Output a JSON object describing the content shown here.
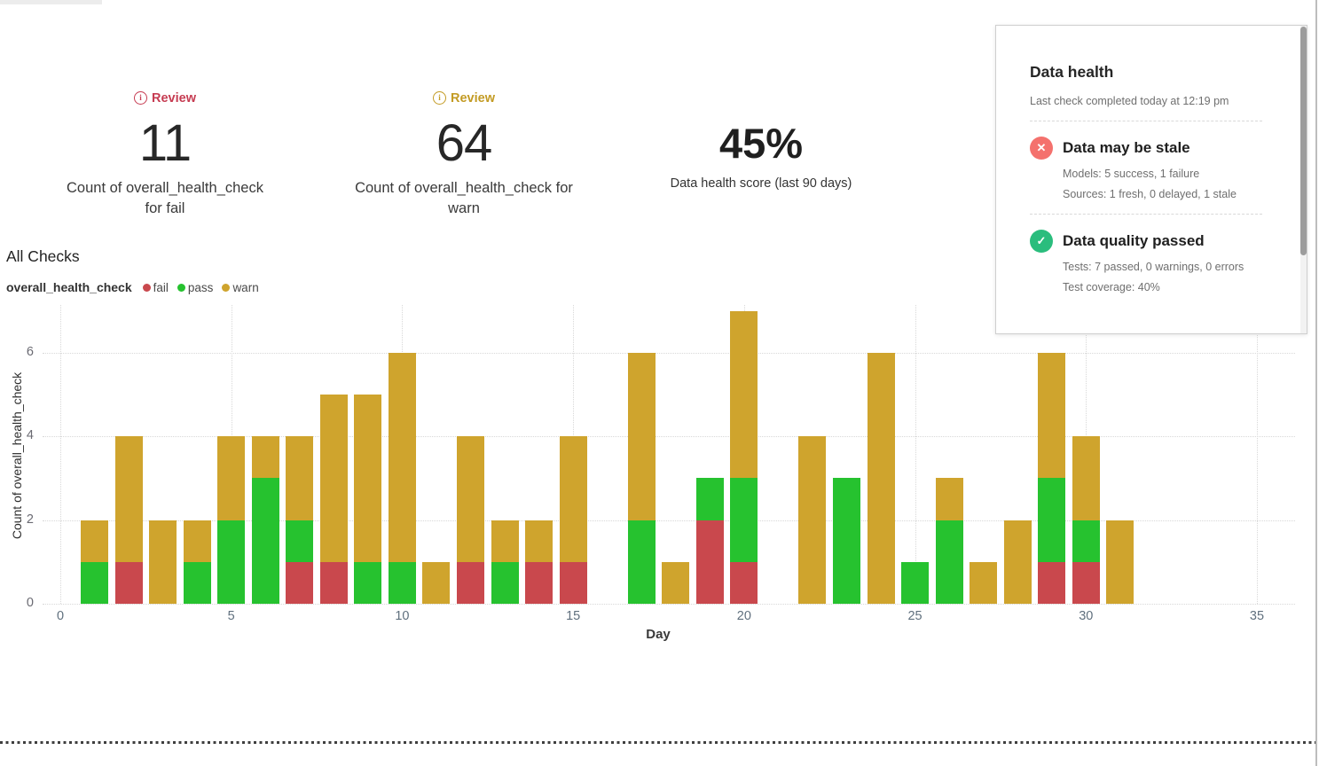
{
  "kpis": [
    {
      "badge": "Review",
      "badge_color": "#c63c52",
      "value": "11",
      "caption_lines": [
        "Count of overall_health_check",
        "for fail"
      ]
    },
    {
      "badge": "Review",
      "badge_color": "#c39b24",
      "value": "64",
      "caption_lines": [
        "Count of overall_health_check for",
        "warn"
      ]
    },
    {
      "value": "45%",
      "caption_lines": [
        "Data health score (last 90 days)"
      ]
    }
  ],
  "section": {
    "title": "All Checks"
  },
  "legend": {
    "group_label": "overall_health_check",
    "items": [
      {
        "label": "fail",
        "color": "#c9484d"
      },
      {
        "label": "pass",
        "color": "#26c22f"
      },
      {
        "label": "warn",
        "color": "#cfa42d"
      }
    ]
  },
  "chart_data": {
    "type": "bar",
    "stacked": true,
    "title": "All Checks",
    "xlabel": "Day",
    "ylabel": "Count of overall_health_check",
    "x": [
      1,
      2,
      3,
      4,
      5,
      6,
      7,
      8,
      9,
      10,
      11,
      12,
      13,
      14,
      15,
      16,
      17,
      18,
      19,
      20,
      21,
      22,
      23,
      24,
      25,
      26,
      27,
      28,
      29,
      30,
      31
    ],
    "series": [
      {
        "name": "fail",
        "color": "#c9484d",
        "values": [
          0,
          1,
          0,
          0,
          0,
          0,
          1,
          1,
          0,
          0,
          0,
          1,
          0,
          1,
          1,
          0,
          0,
          0,
          2,
          1,
          0,
          0,
          0,
          0,
          0,
          0,
          0,
          0,
          1,
          1,
          0
        ]
      },
      {
        "name": "pass",
        "color": "#26c22f",
        "values": [
          1,
          0,
          0,
          1,
          2,
          3,
          1,
          0,
          1,
          1,
          0,
          0,
          1,
          0,
          0,
          0,
          2,
          0,
          1,
          2,
          0,
          0,
          3,
          0,
          1,
          2,
          0,
          0,
          2,
          1,
          0
        ]
      },
      {
        "name": "warn",
        "color": "#cfa42d",
        "values": [
          1,
          3,
          2,
          1,
          2,
          1,
          2,
          4,
          4,
          5,
          1,
          3,
          1,
          1,
          3,
          0,
          4,
          1,
          0,
          4,
          0,
          4,
          0,
          6,
          0,
          1,
          1,
          2,
          3,
          2,
          2
        ]
      }
    ],
    "x_ticks": [
      0,
      5,
      10,
      15,
      20,
      25,
      30,
      35
    ],
    "y_ticks": [
      0,
      2,
      4,
      6
    ],
    "xlim": [
      -0.55,
      36.1
    ],
    "ylim": [
      0,
      7.15
    ],
    "grid": "dotted",
    "legend_position": "top-left"
  },
  "panel": {
    "title": "Data health",
    "subtitle": "Last check completed today at 12:19 pm",
    "items": [
      {
        "icon": "x-circle",
        "icon_color": "#f4716d",
        "title": "Data may be stale",
        "lines": [
          "Models: 5 success, 1 failure",
          "Sources: 1 fresh, 0 delayed, 1 stale"
        ]
      },
      {
        "icon": "check-circle",
        "icon_color": "#2abd7d",
        "title": "Data quality passed",
        "lines": [
          "Tests: 7 passed, 0 warnings, 0 errors",
          "Test coverage: 40%"
        ]
      }
    ]
  }
}
